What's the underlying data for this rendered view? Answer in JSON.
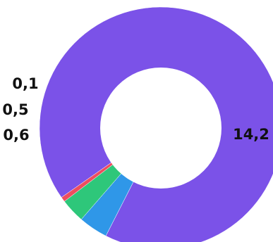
{
  "chart_data": {
    "type": "pie",
    "variant": "donut",
    "title": "",
    "legend": "none",
    "slices": [
      {
        "label": "14,2",
        "value": 14.2,
        "color": "#7b52e8"
      },
      {
        "label": "0,6",
        "value": 0.6,
        "color": "#2f97e8"
      },
      {
        "label": "0,5",
        "value": 0.5,
        "color": "#2ec77a"
      },
      {
        "label": "0,1",
        "value": 0.1,
        "color": "#ee4d5f"
      }
    ]
  }
}
